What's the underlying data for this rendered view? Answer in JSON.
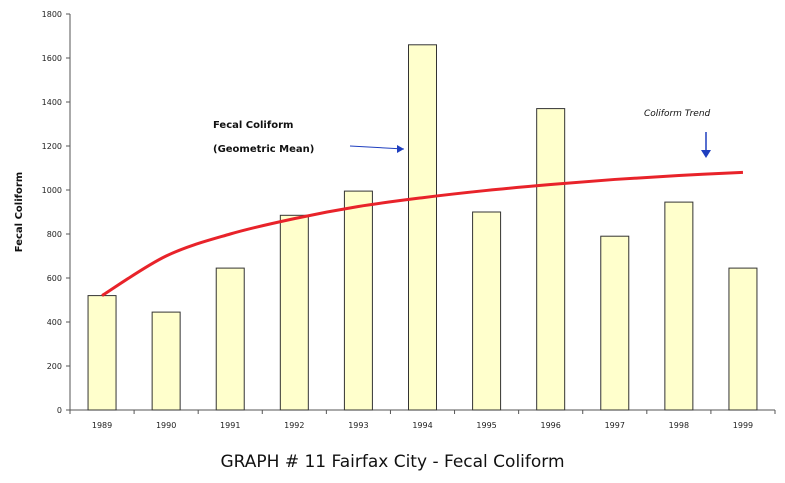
{
  "chart_data": {
    "type": "bar",
    "categories": [
      "1989",
      "1990",
      "1991",
      "1992",
      "1993",
      "1994",
      "1995",
      "1996",
      "1997",
      "1998",
      "1999"
    ],
    "series": [
      {
        "values": [
          520,
          445,
          645,
          885,
          995,
          1660,
          900,
          1370,
          790,
          945,
          645
        ]
      }
    ],
    "trend": {
      "label": "Coliform Trend",
      "values": [
        520,
        700,
        800,
        870,
        925,
        965,
        998,
        1025,
        1048,
        1066,
        1080
      ]
    },
    "annotations": [
      {
        "text_lines": [
          "Fecal Coliform",
          "(Geometric Mean)"
        ]
      },
      {
        "text": "Coliform Trend"
      }
    ],
    "ylabel": "Fecal Coliform",
    "ylim": [
      0,
      1800
    ],
    "yticks": [
      "0",
      "200",
      "400",
      "600",
      "800",
      "1000",
      "1200",
      "1400",
      "1600",
      "1800"
    ],
    "grid": false,
    "colors": {
      "bar_fill": "#FFFFCC",
      "bar_stroke": "#333333",
      "trend_line": "#E8232A",
      "arrow": "#1F3FBF"
    }
  },
  "caption": "GRAPH # 11 Fairfax City - Fecal Coliform"
}
